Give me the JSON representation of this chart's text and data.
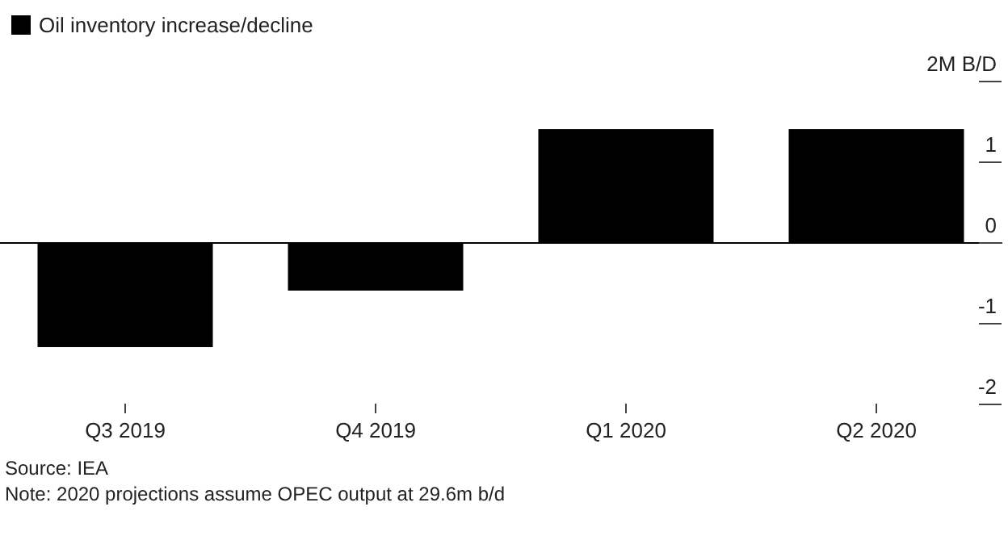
{
  "chart_data": {
    "type": "bar",
    "categories": [
      "Q3 2019",
      "Q4 2019",
      "Q1 2020",
      "Q2 2020"
    ],
    "series": [
      {
        "name": "Oil inventory increase/decline",
        "color": "#000000",
        "values": [
          -1.3,
          -0.6,
          1.4,
          1.4
        ]
      }
    ],
    "ylim": [
      -2,
      2
    ],
    "yticks": [
      -2,
      -1,
      0,
      1,
      {
        "value": 2,
        "label": "2M B/D"
      }
    ],
    "legend": "top left",
    "annotations": [
      "Source: IEA",
      "Note: 2020 projections assume OPEC output at 29.6m b/d"
    ]
  }
}
